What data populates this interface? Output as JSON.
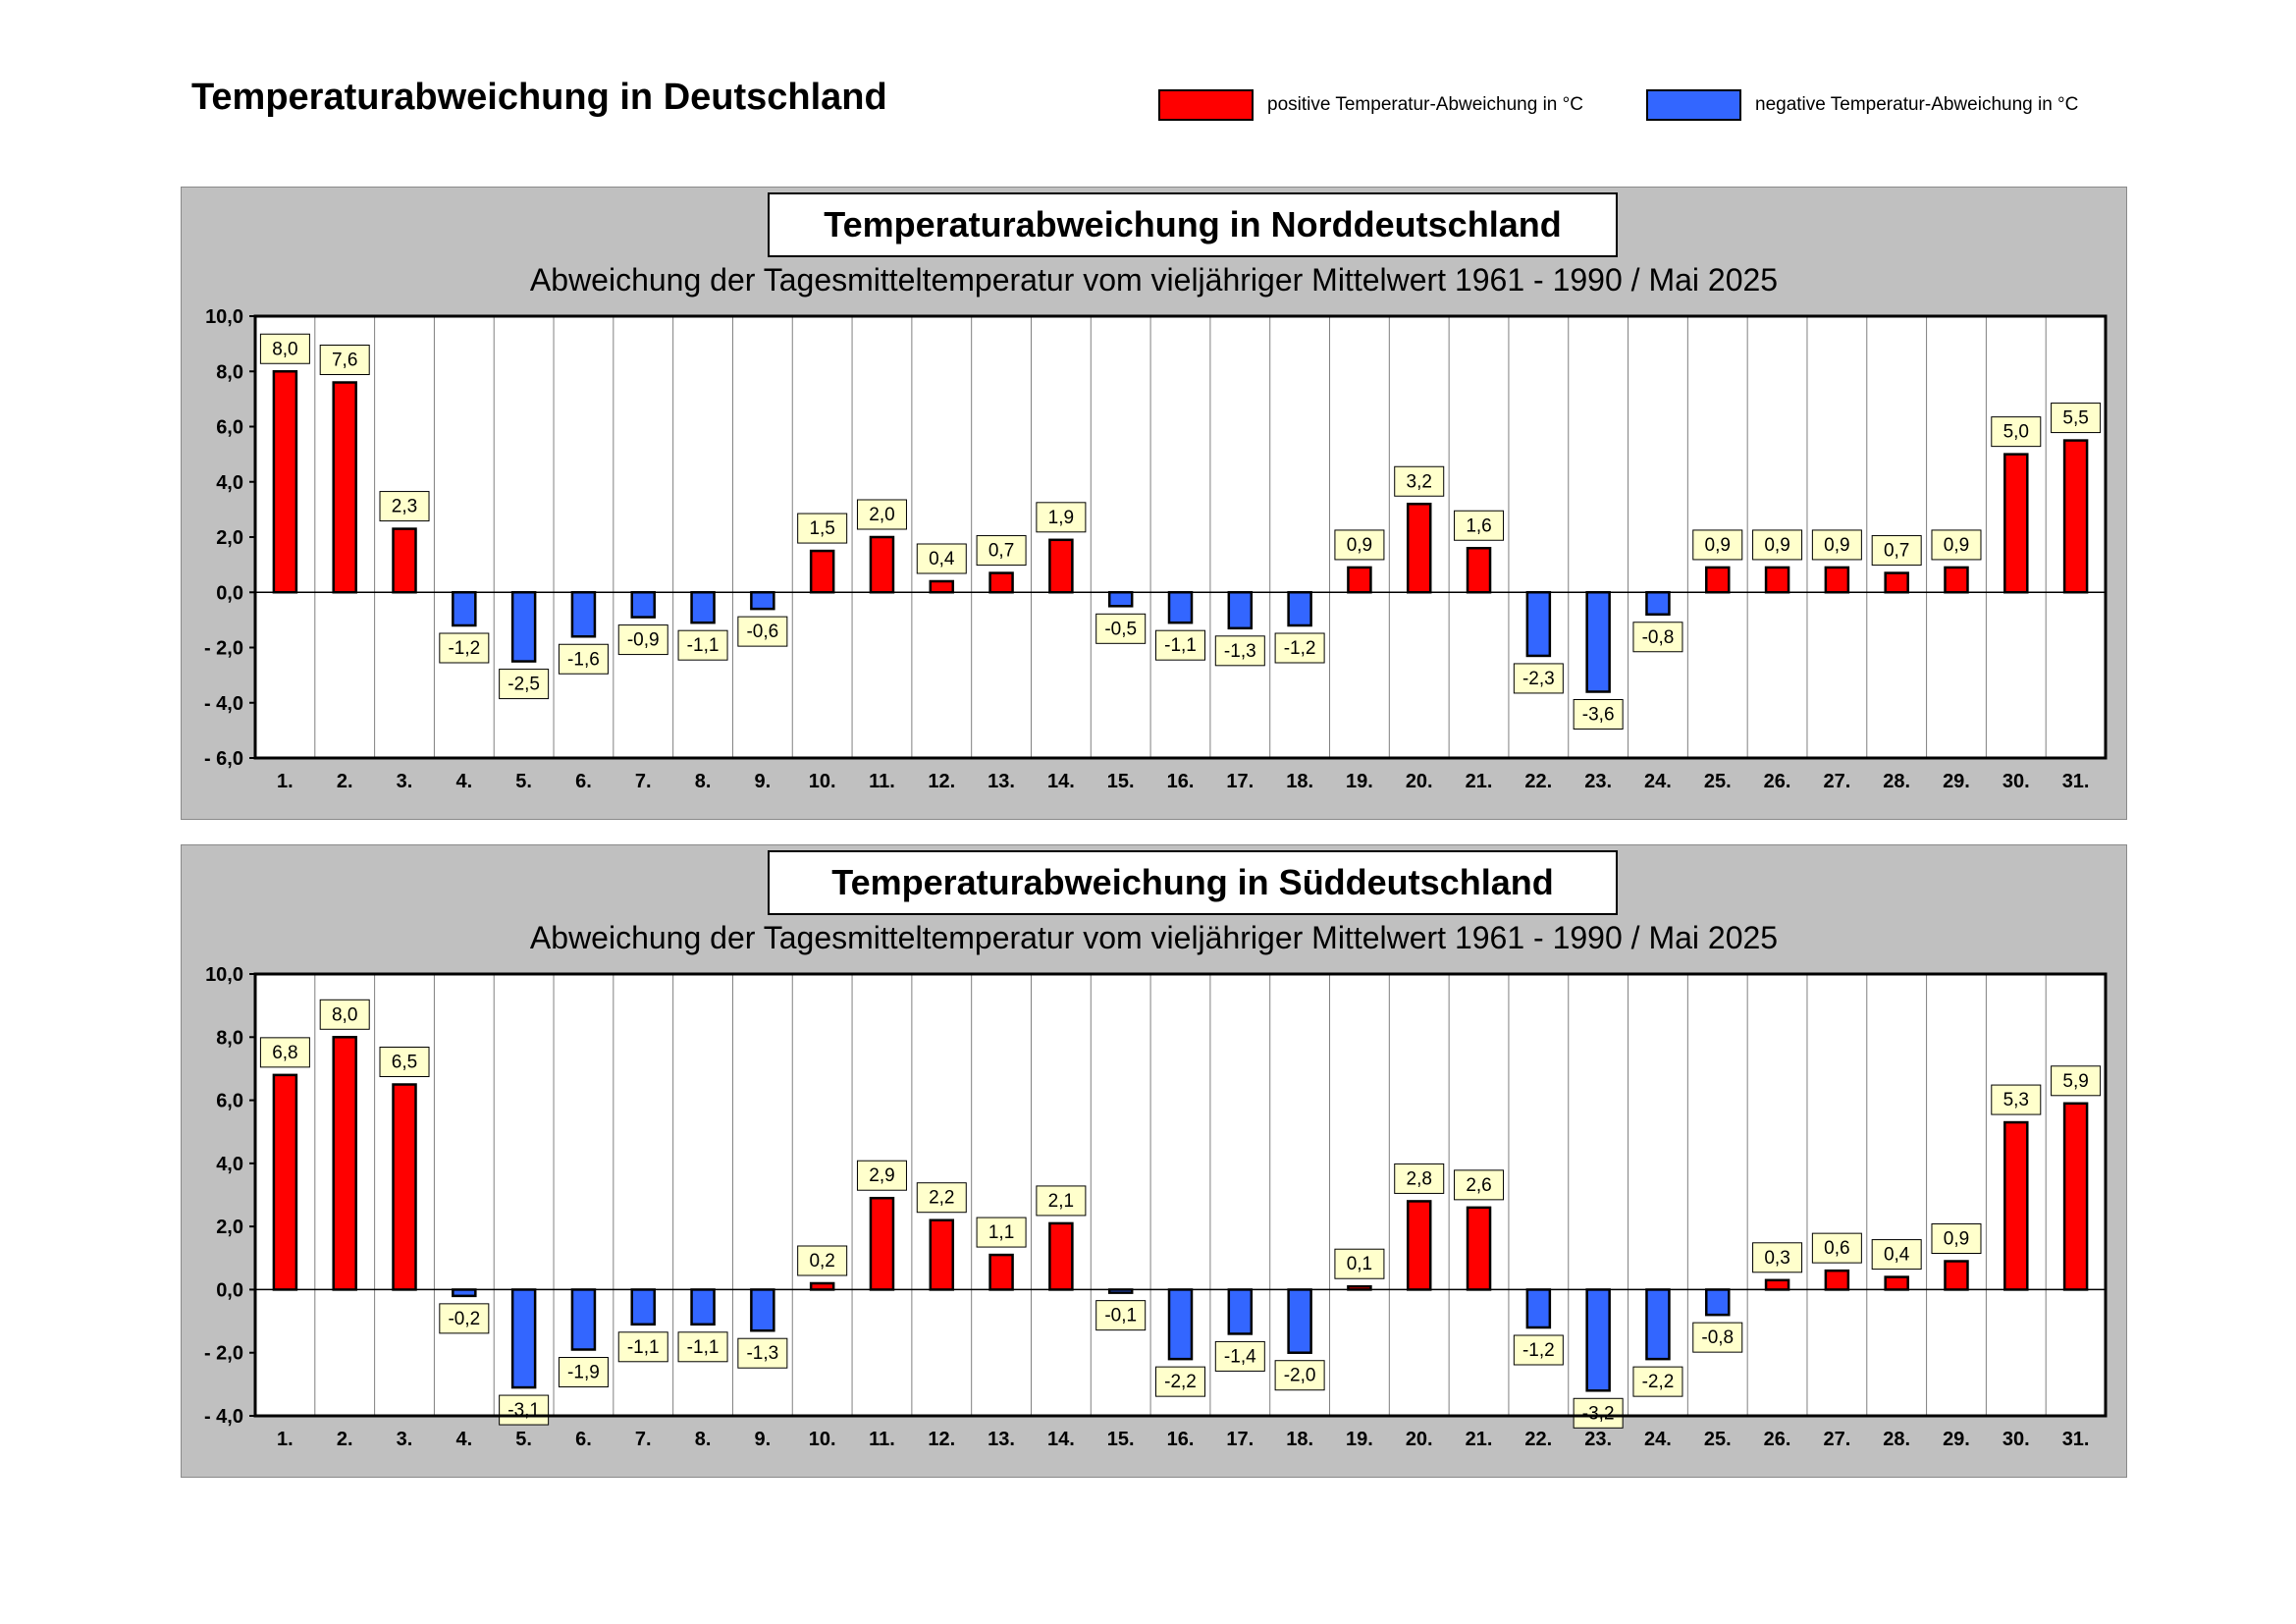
{
  "page_title": "Temperaturabweichung in Deutschland",
  "legend": {
    "positive": {
      "label": "positive Temperatur-Abweichung in °C",
      "color": "#ff0000"
    },
    "negative": {
      "label": "negative Temperatur-Abweichung in °C",
      "color": "#3366ff"
    }
  },
  "chart_data": [
    {
      "type": "bar",
      "title": "Temperaturabweichung in Norddeutschland",
      "subtitle": "Abweichung der Tagesmitteltemperatur vom vieljähriger Mittelwert 1961 - 1990  /  Mai 2025",
      "xlabel": "",
      "ylabel": "",
      "ylim": [
        -6,
        10
      ],
      "yticks": [
        -6,
        -4,
        -2,
        0,
        2,
        4,
        6,
        8,
        10
      ],
      "ytick_labels": [
        "- 6,0",
        "- 4,0",
        "- 2,0",
        "0,0",
        "2,0",
        "4,0",
        "6,0",
        "8,0",
        "10,0"
      ],
      "categories": [
        "1.",
        "2.",
        "3.",
        "4.",
        "5.",
        "6.",
        "7.",
        "8.",
        "9.",
        "10.",
        "11.",
        "12.",
        "13.",
        "14.",
        "15.",
        "16.",
        "17.",
        "18.",
        "19.",
        "20.",
        "21.",
        "22.",
        "23.",
        "24.",
        "25.",
        "26.",
        "27.",
        "28.",
        "29.",
        "30.",
        "31."
      ],
      "values": [
        8.0,
        7.6,
        2.3,
        -1.2,
        -2.5,
        -1.6,
        -0.9,
        -1.1,
        -0.6,
        1.5,
        2.0,
        0.4,
        0.7,
        1.9,
        -0.5,
        -1.1,
        -1.3,
        -1.2,
        0.9,
        3.2,
        1.6,
        -2.3,
        -3.6,
        -0.8,
        0.9,
        0.9,
        0.9,
        0.7,
        0.9,
        5.0,
        5.5
      ],
      "value_labels": [
        "8,0",
        "7,6",
        "2,3",
        "-1,2",
        "-2,5",
        "-1,6",
        "-0,9",
        "-1,1",
        "-0,6",
        "1,5",
        "2,0",
        "0,4",
        "0,7",
        "1,9",
        "-0,5",
        "-1,1",
        "-1,3",
        "-1,2",
        "0,9",
        "3,2",
        "1,6",
        "-2,3",
        "-3,6",
        "-0,8",
        "0,9",
        "0,9",
        "0,9",
        "0,7",
        "0,9",
        "5,0",
        "5,5"
      ]
    },
    {
      "type": "bar",
      "title": "Temperaturabweichung in Süddeutschland",
      "subtitle": "Abweichung der Tagesmitteltemperatur vom vieljähriger Mittelwert 1961 - 1990  /  Mai 2025",
      "xlabel": "",
      "ylabel": "",
      "ylim": [
        -4,
        10
      ],
      "yticks": [
        -4,
        -2,
        0,
        2,
        4,
        6,
        8,
        10
      ],
      "ytick_labels": [
        "- 4,0",
        "- 2,0",
        "0,0",
        "2,0",
        "4,0",
        "6,0",
        "8,0",
        "10,0"
      ],
      "categories": [
        "1.",
        "2.",
        "3.",
        "4.",
        "5.",
        "6.",
        "7.",
        "8.",
        "9.",
        "10.",
        "11.",
        "12.",
        "13.",
        "14.",
        "15.",
        "16.",
        "17.",
        "18.",
        "19.",
        "20.",
        "21.",
        "22.",
        "23.",
        "24.",
        "25.",
        "26.",
        "27.",
        "28.",
        "29.",
        "30.",
        "31."
      ],
      "values": [
        6.8,
        8.0,
        6.5,
        -0.2,
        -3.1,
        -1.9,
        -1.1,
        -1.1,
        -1.3,
        0.2,
        2.9,
        2.2,
        1.1,
        2.1,
        -0.1,
        -2.2,
        -1.4,
        -2.0,
        0.1,
        2.8,
        2.6,
        -1.2,
        -3.2,
        -2.2,
        -0.8,
        0.3,
        0.6,
        0.4,
        0.9,
        5.3,
        5.9
      ],
      "value_labels": [
        "6,8",
        "8,0",
        "6,5",
        "-0,2",
        "-3,1",
        "-1,9",
        "-1,1",
        "-1,1",
        "-1,3",
        "0,2",
        "2,9",
        "2,2",
        "1,1",
        "2,1",
        "-0,1",
        "-2,2",
        "-1,4",
        "-2,0",
        "0,1",
        "2,8",
        "2,6",
        "-1,2",
        "-3,2",
        "-2,2",
        "-0,8",
        "0,3",
        "0,6",
        "0,4",
        "0,9",
        "5,3",
        "5,9"
      ]
    }
  ]
}
